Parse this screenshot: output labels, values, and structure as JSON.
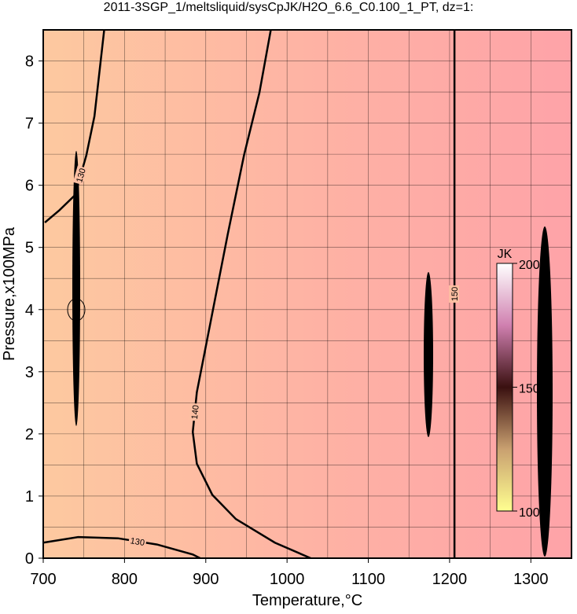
{
  "chart_data": {
    "type": "contour",
    "title": "2011-3SGP_1/meltsliquid/sysCpJK/H2O_6.6_C0.100_1_PT, dz=1:",
    "xlabel": "Temperature,°C",
    "ylabel": "Pressure,x100MPa",
    "xlim": [
      700,
      1350
    ],
    "ylim": [
      0,
      8.5
    ],
    "xticks": [
      700,
      800,
      900,
      1000,
      1100,
      1200,
      1300
    ],
    "yticks": [
      0,
      1,
      2,
      3,
      4,
      5,
      6,
      7,
      8
    ],
    "xminor": [
      750,
      850,
      950,
      1050,
      1150,
      1250
    ],
    "yminor": [
      0.5,
      1.5,
      2.5,
      3.5,
      4.5,
      5.5,
      6.5,
      7.5
    ],
    "grid": true,
    "contours": [
      {
        "level": 130,
        "x": [
          702,
          720,
          739,
          753,
          763,
          775
        ],
        "y": [
          5.4,
          5.6,
          5.84,
          6.48,
          7.11,
          8.5
        ]
      },
      {
        "level": 130,
        "x": [
          700,
          743,
          792,
          840,
          884,
          893
        ],
        "y": [
          0.25,
          0.34,
          0.32,
          0.22,
          0.06,
          0
        ]
      },
      {
        "level": 140,
        "x": [
          980,
          966,
          947,
          927,
          908,
          889,
          884,
          889,
          908,
          937,
          985,
          1029
        ],
        "y": [
          8.5,
          7.49,
          6.48,
          5.21,
          3.94,
          2.67,
          2.03,
          1.52,
          1.02,
          0.63,
          0.25,
          0
        ]
      },
      {
        "level": 150,
        "x": [
          1206,
          1206
        ],
        "y": [
          0,
          8.5
        ]
      }
    ],
    "colorbar": {
      "label": "JK",
      "lim": [
        100,
        200
      ],
      "ticks": [
        100,
        150,
        200
      ]
    }
  }
}
